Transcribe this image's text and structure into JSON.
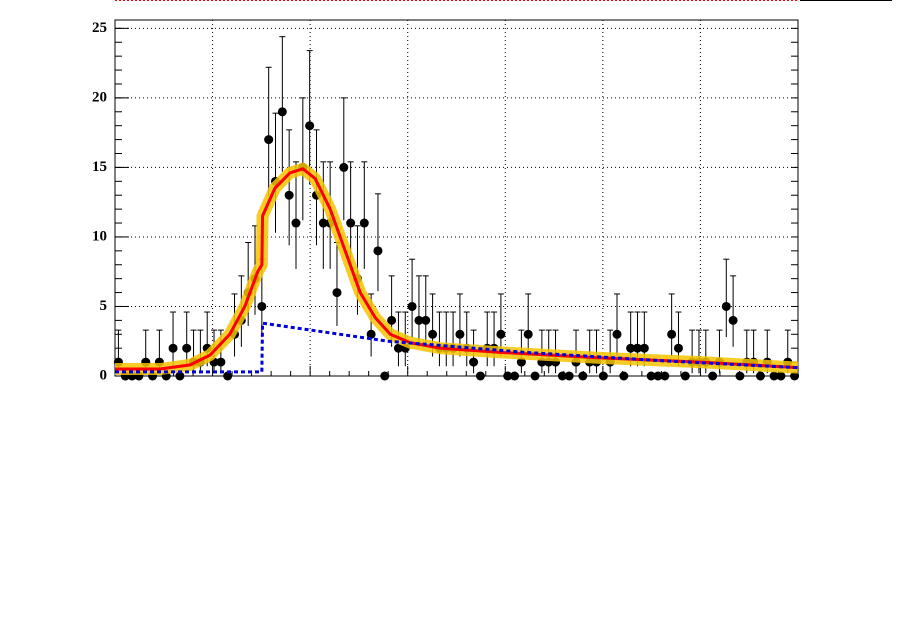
{
  "chart_data": {
    "type": "scatter",
    "ylim": [
      0,
      25.6
    ],
    "yticks": [
      0,
      5,
      10,
      15,
      20,
      25
    ],
    "grid": true,
    "xlim": [
      0,
      100
    ],
    "series": [
      {
        "color": "#000000",
        "values": [
          1,
          0,
          0,
          0,
          1,
          0,
          1,
          0,
          2,
          0,
          2,
          1,
          1,
          2,
          1,
          1,
          0,
          3,
          4,
          6,
          7,
          5,
          17,
          14,
          19,
          13,
          11,
          15,
          18,
          13,
          11,
          11,
          6,
          15,
          11,
          7,
          11,
          3,
          9,
          0,
          4,
          2,
          2,
          5,
          4,
          4,
          3,
          2,
          2,
          2,
          3,
          2,
          1,
          0,
          2,
          2,
          3,
          0,
          0,
          1,
          3,
          0,
          1,
          1,
          1,
          0,
          0,
          1,
          0,
          1,
          1,
          0,
          1,
          3,
          0,
          2,
          2,
          2,
          0,
          0,
          0,
          3,
          2,
          0,
          1,
          1,
          1,
          0,
          1,
          5,
          4,
          0,
          1,
          1,
          0,
          1,
          0,
          0,
          1,
          0
        ],
        "errors": [
          [
            0.8,
            2.3
          ],
          [
            0,
            0
          ],
          [
            0,
            0
          ],
          [
            0,
            0
          ],
          [
            0.8,
            2.3
          ],
          [
            0,
            0
          ],
          [
            0.8,
            2.3
          ],
          [
            0,
            0
          ],
          [
            1.3,
            2.6
          ],
          [
            0,
            0
          ],
          [
            1.3,
            2.6
          ],
          [
            0.8,
            2.3
          ],
          [
            0.8,
            2.3
          ],
          [
            1.3,
            2.6
          ],
          [
            0.8,
            2.3
          ],
          [
            0.8,
            2.3
          ],
          [
            0,
            0
          ],
          [
            1.6,
            2.9
          ],
          [
            1.9,
            3.2
          ],
          [
            2.4,
            3.6
          ],
          [
            2.6,
            3.8
          ],
          [
            2.2,
            3.4
          ],
          [
            4.1,
            5.2
          ],
          [
            3.7,
            4.9
          ],
          [
            4.3,
            5.4
          ],
          [
            3.6,
            4.7
          ],
          [
            3.3,
            4.4
          ],
          [
            3.8,
            5.0
          ],
          [
            4.2,
            5.4
          ],
          [
            3.6,
            4.7
          ],
          [
            3.3,
            4.4
          ],
          [
            3.3,
            4.4
          ],
          [
            2.4,
            3.6
          ],
          [
            3.8,
            5.0
          ],
          [
            3.3,
            4.4
          ],
          [
            2.6,
            3.8
          ],
          [
            3.3,
            4.4
          ],
          [
            1.6,
            2.9
          ],
          [
            2.9,
            4.1
          ],
          [
            0,
            0
          ],
          [
            1.9,
            3.2
          ],
          [
            1.3,
            2.6
          ],
          [
            1.3,
            2.6
          ],
          [
            2.2,
            3.4
          ],
          [
            1.9,
            3.2
          ],
          [
            1.9,
            3.2
          ],
          [
            1.6,
            2.9
          ],
          [
            1.3,
            2.6
          ],
          [
            1.3,
            2.6
          ],
          [
            1.3,
            2.6
          ],
          [
            1.6,
            2.9
          ],
          [
            1.3,
            2.6
          ],
          [
            0.8,
            2.3
          ],
          [
            0,
            0
          ],
          [
            1.3,
            2.6
          ],
          [
            1.3,
            2.6
          ],
          [
            1.6,
            2.9
          ],
          [
            0,
            0
          ],
          [
            0,
            0
          ],
          [
            0.8,
            2.3
          ],
          [
            1.6,
            2.9
          ],
          [
            0,
            0
          ],
          [
            0.8,
            2.3
          ],
          [
            0.8,
            2.3
          ],
          [
            0.8,
            2.3
          ],
          [
            0,
            0
          ],
          [
            0,
            0
          ],
          [
            0.8,
            2.3
          ],
          [
            0,
            0
          ],
          [
            0.8,
            2.3
          ],
          [
            0.8,
            2.3
          ],
          [
            0,
            0
          ],
          [
            0.8,
            2.3
          ],
          [
            1.6,
            2.9
          ],
          [
            0,
            0
          ],
          [
            1.3,
            2.6
          ],
          [
            1.3,
            2.6
          ],
          [
            1.3,
            2.6
          ],
          [
            0,
            0
          ],
          [
            0,
            0
          ],
          [
            0,
            0
          ],
          [
            1.6,
            2.9
          ],
          [
            1.3,
            2.6
          ],
          [
            0,
            0
          ],
          [
            0.8,
            2.3
          ],
          [
            0.8,
            2.3
          ],
          [
            0.8,
            2.3
          ],
          [
            0,
            0
          ],
          [
            0.8,
            2.3
          ],
          [
            2.2,
            3.4
          ],
          [
            1.9,
            3.2
          ],
          [
            0,
            0
          ],
          [
            0.8,
            2.3
          ],
          [
            0.8,
            2.3
          ],
          [
            0,
            0
          ],
          [
            0.8,
            2.3
          ],
          [
            0,
            0
          ],
          [
            0,
            0
          ],
          [
            0.8,
            2.3
          ],
          [
            0,
            0
          ]
        ]
      },
      {
        "color": "#ff0000",
        "line": "solid",
        "x": [
          0,
          6.6,
          11,
          13.9,
          16.8,
          19,
          20.9,
          21.5,
          21.6,
          23.4,
          25.6,
          27.5,
          29.3,
          31.5,
          33.7,
          35.9,
          38.1,
          40.3,
          43.2,
          47.6,
          56.4,
          71,
          85.7,
          100
        ],
        "values": [
          0.5,
          0.5,
          0.8,
          1.5,
          3,
          5,
          7.5,
          8,
          11.5,
          13.5,
          14.6,
          14.9,
          14.2,
          12,
          9,
          6,
          4.2,
          3,
          2.4,
          2,
          1.7,
          1.3,
          1,
          0.6
        ]
      },
      {
        "color": "#0000dd",
        "line": "dashed",
        "x": [
          0,
          21.5,
          21.6,
          40,
          60,
          80,
          100
        ],
        "values": [
          0.3,
          0.3,
          3.8,
          2.5,
          1.7,
          1.1,
          0.6
        ]
      }
    ]
  }
}
